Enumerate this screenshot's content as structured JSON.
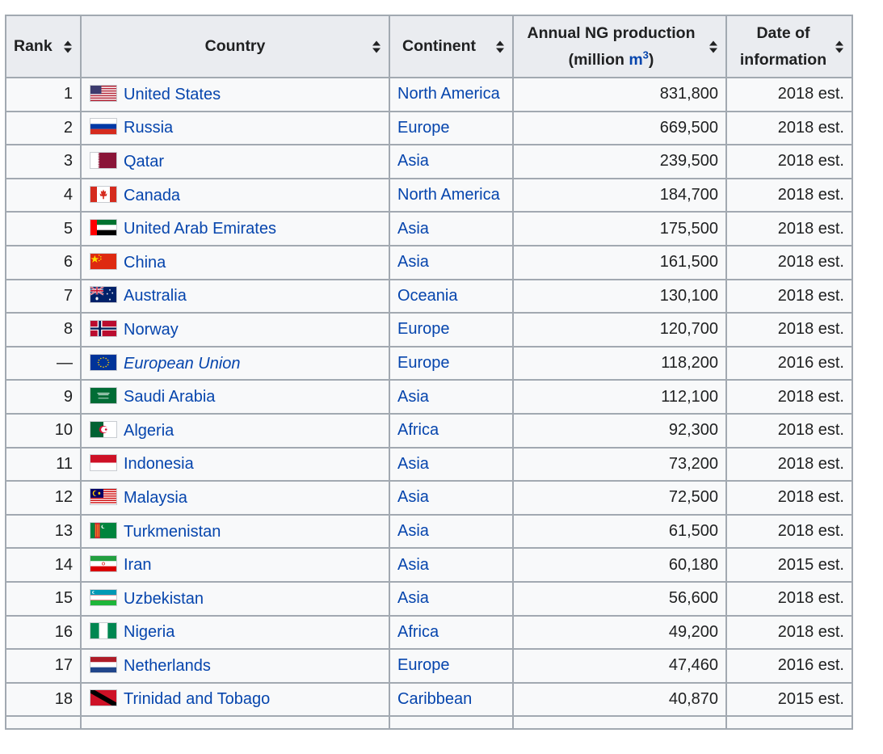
{
  "header": {
    "rank": "Rank",
    "country": "Country",
    "continent": "Continent",
    "production_line1": "Annual NG production",
    "production_line2_pre": "(million ",
    "production_unit": "m",
    "production_unit_sup": "3",
    "production_line2_post": ")",
    "date_line1": "Date of",
    "date_line2": "information"
  },
  "rows": [
    {
      "rank": "1",
      "flag": "us-flag-icon",
      "country": "United States",
      "continent": "North America",
      "production": "831,800",
      "date": "2018 est."
    },
    {
      "rank": "2",
      "flag": "russia-flag-icon",
      "country": "Russia",
      "continent": "Europe",
      "production": "669,500",
      "date": "2018 est."
    },
    {
      "rank": "3",
      "flag": "qatar-flag-icon",
      "country": "Qatar",
      "continent": "Asia",
      "production": "239,500",
      "date": "2018 est."
    },
    {
      "rank": "4",
      "flag": "canada-flag-icon",
      "country": "Canada",
      "continent": "North America",
      "production": "184,700",
      "date": "2018 est."
    },
    {
      "rank": "5",
      "flag": "uae-flag-icon",
      "country": "United Arab Emirates",
      "continent": "Asia",
      "production": "175,500",
      "date": "2018 est."
    },
    {
      "rank": "6",
      "flag": "china-flag-icon",
      "country": "China",
      "continent": "Asia",
      "production": "161,500",
      "date": "2018 est."
    },
    {
      "rank": "7",
      "flag": "australia-flag-icon",
      "country": "Australia",
      "continent": "Oceania",
      "production": "130,100",
      "date": "2018 est."
    },
    {
      "rank": "8",
      "flag": "norway-flag-icon",
      "country": "Norway",
      "continent": "Europe",
      "production": "120,700",
      "date": "2018 est."
    },
    {
      "rank": "—",
      "flag": "eu-flag-icon",
      "country": "European Union",
      "continent": "Europe",
      "production": "118,200",
      "date": "2016 est.",
      "italic": true
    },
    {
      "rank": "9",
      "flag": "saudi-arabia-flag-icon",
      "country": "Saudi Arabia",
      "continent": "Asia",
      "production": "112,100",
      "date": "2018 est."
    },
    {
      "rank": "10",
      "flag": "algeria-flag-icon",
      "country": "Algeria",
      "continent": "Africa",
      "production": "92,300",
      "date": "2018 est."
    },
    {
      "rank": "11",
      "flag": "indonesia-flag-icon",
      "country": "Indonesia",
      "continent": "Asia",
      "production": "73,200",
      "date": "2018 est."
    },
    {
      "rank": "12",
      "flag": "malaysia-flag-icon",
      "country": "Malaysia",
      "continent": "Asia",
      "production": "72,500",
      "date": "2018 est."
    },
    {
      "rank": "13",
      "flag": "turkmenistan-flag-icon",
      "country": "Turkmenistan",
      "continent": "Asia",
      "production": "61,500",
      "date": "2018 est."
    },
    {
      "rank": "14",
      "flag": "iran-flag-icon",
      "country": "Iran",
      "continent": "Asia",
      "production": "60,180",
      "date": "2015 est."
    },
    {
      "rank": "15",
      "flag": "uzbekistan-flag-icon",
      "country": "Uzbekistan",
      "continent": "Asia",
      "production": "56,600",
      "date": "2018 est."
    },
    {
      "rank": "16",
      "flag": "nigeria-flag-icon",
      "country": "Nigeria",
      "continent": "Africa",
      "production": "49,200",
      "date": "2018 est."
    },
    {
      "rank": "17",
      "flag": "netherlands-flag-icon",
      "country": "Netherlands",
      "continent": "Europe",
      "production": "47,460",
      "date": "2016 est."
    },
    {
      "rank": "18",
      "flag": "trinidad-and-tobago-flag-icon",
      "country": "Trinidad and Tobago",
      "continent": "Caribbean",
      "production": "40,870",
      "date": "2015 est."
    }
  ],
  "colors": {
    "link": "#0645ad",
    "header_bg": "#eaecf0",
    "cell_bg": "#f8f9fa",
    "border": "#a2a9b1"
  }
}
